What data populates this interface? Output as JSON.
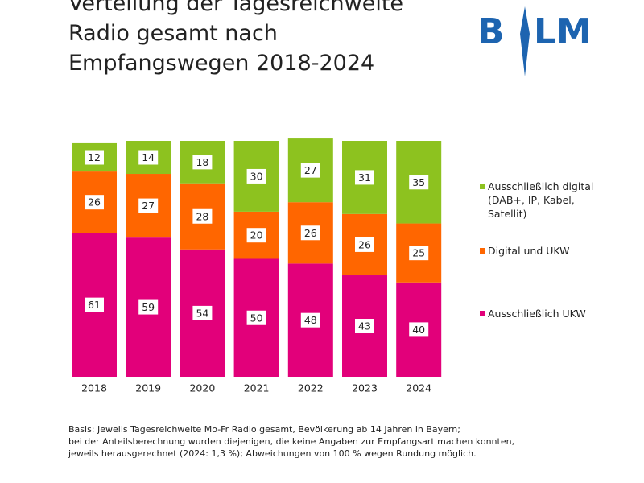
{
  "chart_data": {
    "type": "stacked_bar",
    "title": [
      "Verteilung der Tagesreichweite",
      "Radio gesamt nach",
      "Empfangswegen 2018-2024"
    ],
    "logo": {
      "left": "B",
      "right": "LM"
    },
    "categories": [
      "2018",
      "2019",
      "2020",
      "2021",
      "2022",
      "2023",
      "2024"
    ],
    "ylim": [
      0,
      100
    ],
    "series": [
      {
        "name": "Ausschließlich UKW",
        "color": "#e2007a",
        "values": [
          61,
          59,
          54,
          50,
          48,
          43,
          40
        ]
      },
      {
        "name": "Digital und UKW",
        "color": "#ff6600",
        "values": [
          26,
          27,
          28,
          20,
          26,
          26,
          25
        ]
      },
      {
        "name": "Ausschließlich digital (DAB+, IP, Kabel, Satellit)",
        "color": "#8dc21f",
        "values": [
          12,
          14,
          18,
          30,
          27,
          31,
          35
        ]
      }
    ],
    "footnote": [
      "Basis: Jeweils Tagesreichweite Mo-Fr Radio gesamt, Bevölkerung ab 14 Jahren in Bayern;",
      "bei der Anteilsberechnung wurden diejenigen, die keine Angaben zur Empfangsart machen konnten,",
      "jeweils herausgerechnet (2024: 1,3 %); Abweichungen von 100 % wegen Rundung möglich."
    ]
  }
}
